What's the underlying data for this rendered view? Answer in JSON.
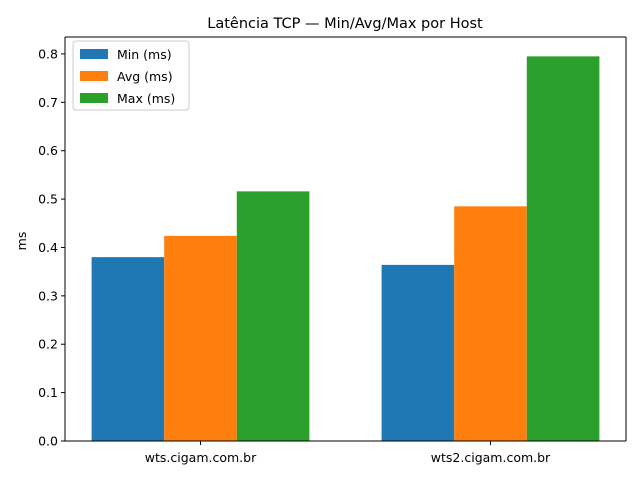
{
  "chart_data": {
    "type": "bar",
    "title": "Latência TCP — Min/Avg/Max por Host",
    "xlabel": "",
    "ylabel": "ms",
    "categories": [
      "wts.cigam.com.br",
      "wts2.cigam.com.br"
    ],
    "series": [
      {
        "name": "Min (ms)",
        "values": [
          0.38,
          0.364
        ],
        "color": "#1f77b4"
      },
      {
        "name": "Avg (ms)",
        "values": [
          0.424,
          0.485
        ],
        "color": "#ff7f0e"
      },
      {
        "name": "Max (ms)",
        "values": [
          0.516,
          0.795
        ],
        "color": "#2ca02c"
      }
    ],
    "ylim": [
      0,
      0.835
    ],
    "yticks": [
      "0.0",
      "0.1",
      "0.2",
      "0.3",
      "0.4",
      "0.5",
      "0.6",
      "0.7",
      "0.8"
    ],
    "grid": false,
    "legend_position": "upper-left"
  }
}
